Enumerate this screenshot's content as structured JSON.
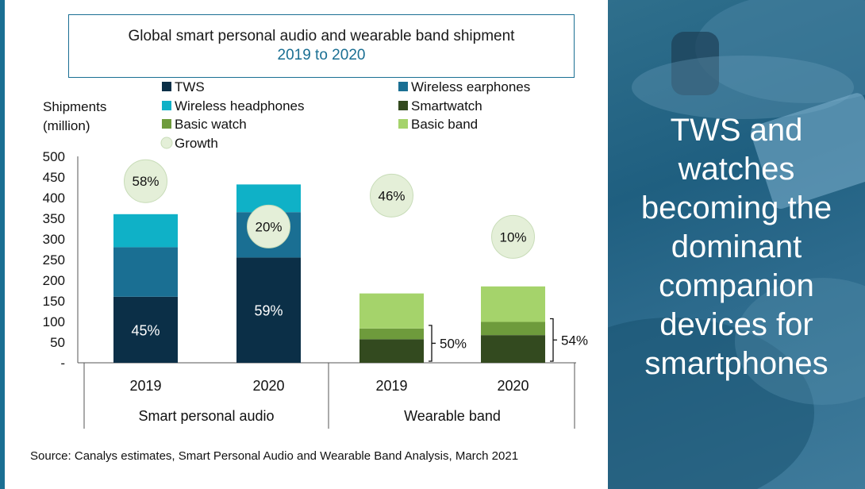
{
  "title": "Global smart personal audio and wearable band shipment",
  "subtitle": "2019 to 2020",
  "source": "Source: Canalys estimates, Smart Personal Audio and Wearable Band Analysis, March 2021",
  "headline": "TWS and watches becoming the dominant companion devices for smartphones",
  "chart_data": {
    "type": "bar",
    "stacked": true,
    "ylabel": "Shipments (million)",
    "ylabel_lines": [
      "Shipments",
      "(million)"
    ],
    "ylim": [
      0,
      500
    ],
    "yticks": [
      "-",
      "50",
      "100",
      "150",
      "200",
      "250",
      "300",
      "350",
      "400",
      "450",
      "500"
    ],
    "groups": [
      "Smart personal audio",
      "Wearable band"
    ],
    "categories": [
      "2019",
      "2020",
      "2019",
      "2020"
    ],
    "legend": [
      "TWS",
      "Wireless earphones",
      "Wireless headphones",
      "Smartwatch",
      "Basic watch",
      "Basic band",
      "Growth"
    ],
    "series": [
      {
        "name": "TWS",
        "values": [
          160,
          255,
          0,
          0
        ],
        "color": "#0b2f47"
      },
      {
        "name": "Wireless earphones",
        "values": [
          120,
          110,
          0,
          0
        ],
        "color": "#1a6f93"
      },
      {
        "name": "Wireless headphones",
        "values": [
          80,
          67,
          0,
          0
        ],
        "color": "#0fb1c7"
      },
      {
        "name": "Smartwatch",
        "values": [
          0,
          0,
          57,
          67
        ],
        "color": "#334a1f"
      },
      {
        "name": "Basic watch",
        "values": [
          0,
          0,
          26,
          32
        ],
        "color": "#6e9b3c"
      },
      {
        "name": "Basic band",
        "values": [
          0,
          0,
          85,
          86
        ],
        "color": "#a5d36b"
      }
    ],
    "growth": [
      "58%",
      "20%",
      "46%",
      "10%"
    ],
    "bar_labels": [
      "45%",
      "59%"
    ],
    "bracket_labels": [
      "50%",
      "54%"
    ],
    "growth_color": "#e4efd8"
  }
}
